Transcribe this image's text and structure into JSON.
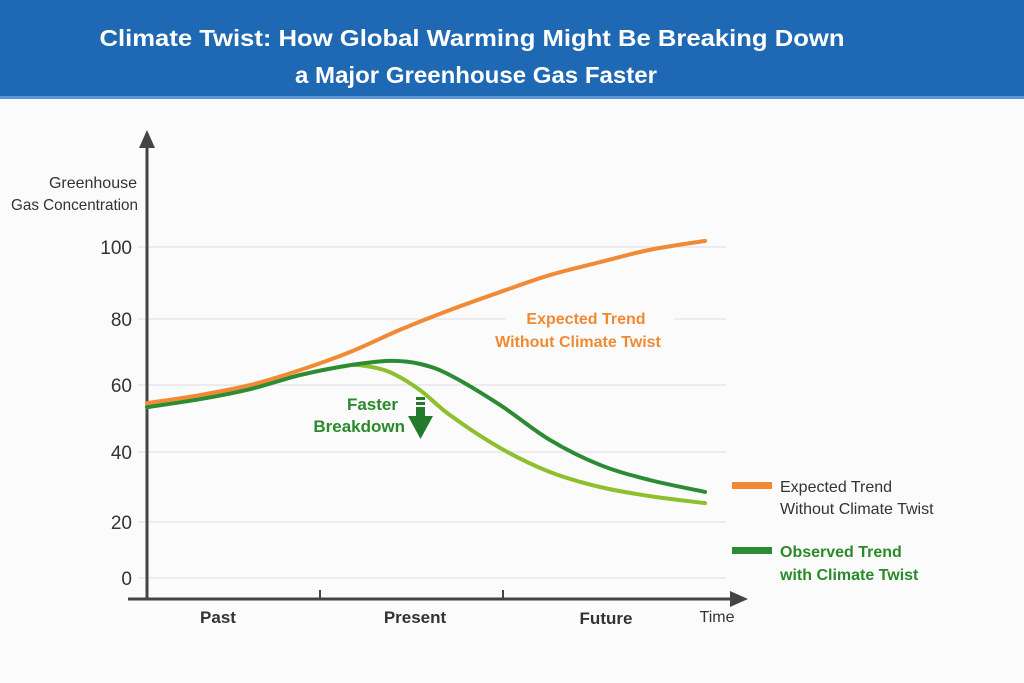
{
  "header": {
    "title_line1": "Climate Twist: How Global Warming Might Be Breaking Down",
    "title_line2": "a Major Greenhouse Gas Faster",
    "background": "#1f68b3"
  },
  "chart_data": {
    "type": "line",
    "title": "Climate Twist: How Global Warming Might Be Breaking Down a Major Greenhouse Gas Faster",
    "ylabel_line1": "Greenhouse",
    "ylabel_line2": "Gas Concentration",
    "xlabel": "Time",
    "yticks": [
      0,
      20,
      40,
      60,
      80,
      100
    ],
    "ytick_labels": [
      "0",
      "20",
      "40",
      "60",
      "80",
      "100"
    ],
    "xcategories": [
      "Past",
      "Present",
      "Future"
    ],
    "xlim": [
      0,
      100
    ],
    "ylim": [
      0,
      100
    ],
    "grid": true,
    "legend_placement": "right",
    "series": [
      {
        "name": "Expected Trend Without Climate Twist",
        "color": "#f08a35",
        "x": [
          0,
          9.5,
          18.5,
          27.4,
          36.4,
          45.3,
          54.3,
          63.3,
          72.2,
          81.2,
          90.1,
          100
        ],
        "y": [
          54.6,
          57,
          60,
          64.5,
          70,
          76.7,
          82.5,
          87.5,
          92.2,
          95.8,
          99.2,
          101.7
        ]
      },
      {
        "name": "Observed Trend with Climate Twist",
        "color": "#2e8b35",
        "x": [
          0,
          9.5,
          18.5,
          27.4,
          36.4,
          43.5,
          48.9,
          54.3,
          63.3,
          72.2,
          81.2,
          90.1,
          100
        ],
        "y": [
          53.4,
          55.8,
          58.8,
          63,
          66,
          67.3,
          66.4,
          63,
          54,
          43.6,
          36.3,
          32,
          28.6
        ]
      },
      {
        "color": "#8dbf2e",
        "x": [
          0,
          9.5,
          18.5,
          27.4,
          34.6,
          38.2,
          43.5,
          48.9,
          54.3,
          63.3,
          72.2,
          81.2,
          90.1,
          100
        ],
        "y": [
          53.4,
          55.8,
          58.8,
          63,
          65.5,
          66,
          63.9,
          58.5,
          51,
          41.2,
          34.3,
          30,
          27.4,
          25.4
        ]
      }
    ],
    "annotations": {
      "expected_line1": "Expected Trend",
      "expected_line2": "Without Climate Twist",
      "faster_line1": "Faster",
      "faster_line2": "Breakdown"
    },
    "legend": [
      {
        "line1": "Expected Trend",
        "line2": "Without Climate Twist",
        "color": "#f08a35",
        "text_color": "#333333"
      },
      {
        "line1": "Observed Trend",
        "line2": "with Climate Twist",
        "color": "#2e8b35",
        "text_color": "#2a8a2a"
      }
    ]
  }
}
